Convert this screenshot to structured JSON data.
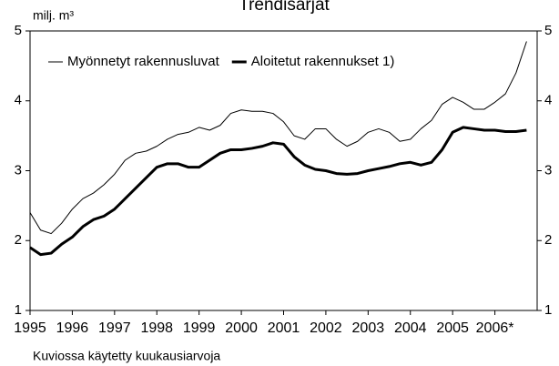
{
  "chart_data": {
    "type": "line",
    "title": "Trendisarjat",
    "y_label": "milj. m³",
    "note": "Kuviossa käytetty kuukausiarvoja",
    "x": [
      1995,
      1995.25,
      1995.5,
      1995.75,
      1996,
      1996.25,
      1996.5,
      1996.75,
      1997,
      1997.25,
      1997.5,
      1997.75,
      1998,
      1998.25,
      1998.5,
      1998.75,
      1999,
      1999.25,
      1999.5,
      1999.75,
      2000,
      2000.25,
      2000.5,
      2000.75,
      2001,
      2001.25,
      2001.5,
      2001.75,
      2002,
      2002.25,
      2002.5,
      2002.75,
      2003,
      2003.25,
      2003.5,
      2003.75,
      2004,
      2004.25,
      2004.5,
      2004.75,
      2005,
      2005.25,
      2005.5,
      2005.75,
      2006,
      2006.25,
      2006.5,
      2006.75
    ],
    "series": [
      {
        "name": "Myönnetyt rakennusluvat",
        "color": "#000000",
        "width": 1,
        "values": [
          2.4,
          2.15,
          2.1,
          2.25,
          2.45,
          2.6,
          2.68,
          2.8,
          2.95,
          3.15,
          3.25,
          3.28,
          3.35,
          3.45,
          3.52,
          3.55,
          3.62,
          3.58,
          3.65,
          3.82,
          3.87,
          3.85,
          3.85,
          3.82,
          3.7,
          3.5,
          3.45,
          3.6,
          3.6,
          3.45,
          3.35,
          3.42,
          3.55,
          3.6,
          3.55,
          3.42,
          3.45,
          3.6,
          3.72,
          3.95,
          4.05,
          3.98,
          3.88,
          3.88,
          3.98,
          4.1,
          4.4,
          4.85
        ]
      },
      {
        "name": "Aloitetut rakennukset 1)",
        "color": "#000000",
        "width": 3,
        "values": [
          1.9,
          1.8,
          1.82,
          1.95,
          2.05,
          2.2,
          2.3,
          2.35,
          2.45,
          2.6,
          2.75,
          2.9,
          3.05,
          3.1,
          3.1,
          3.05,
          3.05,
          3.15,
          3.25,
          3.3,
          3.3,
          3.32,
          3.35,
          3.4,
          3.38,
          3.2,
          3.08,
          3.02,
          3.0,
          2.96,
          2.95,
          2.96,
          3.0,
          3.03,
          3.06,
          3.1,
          3.12,
          3.08,
          3.12,
          3.3,
          3.55,
          3.62,
          3.6,
          3.58,
          3.58,
          3.56,
          3.56,
          3.58
        ]
      }
    ],
    "xlim": [
      1995,
      2007
    ],
    "xticks": [
      1995,
      1996,
      1997,
      1998,
      1999,
      2000,
      2001,
      2002,
      2003,
      2004,
      2005,
      {
        "value": 2006,
        "label": "2006*"
      }
    ],
    "ylim": [
      1,
      5
    ],
    "yticks": [
      1,
      2,
      3,
      4,
      5
    ],
    "y2lim": [
      1,
      5
    ],
    "y2ticks": [
      1,
      2,
      3,
      4,
      5
    ],
    "legend": "upper left",
    "grid": false
  }
}
